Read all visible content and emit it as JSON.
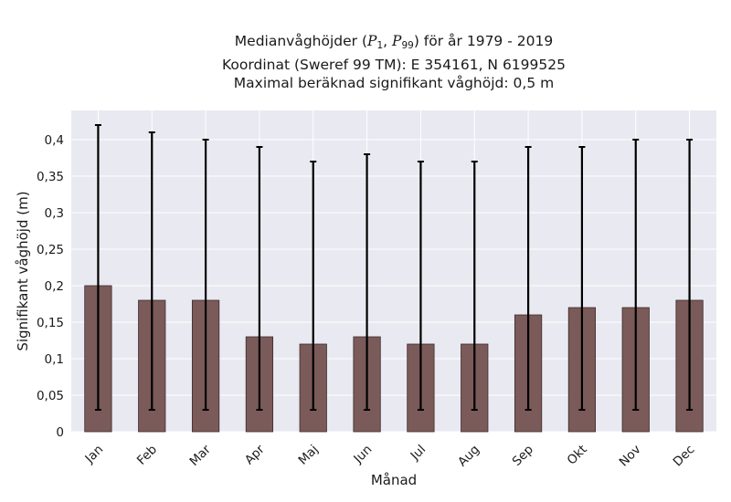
{
  "chart_data": {
    "type": "bar",
    "title_lines": [
      {
        "prefix": "Medianvåghöjder (",
        "p1": "P",
        "p1_sub": "1",
        "sep": ", ",
        "p2": "P",
        "p2_sub": "99",
        "suffix": ") för år 1979 - 2019"
      },
      "Koordinat (Sweref 99 TM): E 354161, N 6199525",
      "Maximal beräknad signifikant våghöjd: 0,5 m"
    ],
    "xlabel": "Månad",
    "ylabel": "Signifikant våghöjd (m)",
    "categories": [
      "Jan",
      "Feb",
      "Mar",
      "Apr",
      "Maj",
      "Jun",
      "Jul",
      "Aug",
      "Sep",
      "Okt",
      "Nov",
      "Dec"
    ],
    "values": [
      0.2,
      0.18,
      0.18,
      0.13,
      0.12,
      0.13,
      0.12,
      0.12,
      0.16,
      0.17,
      0.17,
      0.18
    ],
    "error_low": [
      0.03,
      0.03,
      0.03,
      0.03,
      0.03,
      0.03,
      0.03,
      0.03,
      0.03,
      0.03,
      0.03,
      0.03
    ],
    "error_high": [
      0.42,
      0.41,
      0.4,
      0.39,
      0.37,
      0.38,
      0.37,
      0.37,
      0.39,
      0.39,
      0.4,
      0.4
    ],
    "ylim": [
      0,
      0.44
    ],
    "yticks": [
      0,
      0.05,
      0.1,
      0.15,
      0.2,
      0.25,
      0.3,
      0.35,
      0.4
    ],
    "ytick_labels": [
      "0",
      "0,05",
      "0,1",
      "0,15",
      "0,2",
      "0,25",
      "0,3",
      "0,35",
      "0,4"
    ],
    "grid": true,
    "colors": {
      "bar": "#7b5a5a",
      "bar_edge": "#3d2b2b",
      "error": "#000000",
      "plot_bg": "#e9e9f1",
      "grid": "#ffffff"
    }
  }
}
